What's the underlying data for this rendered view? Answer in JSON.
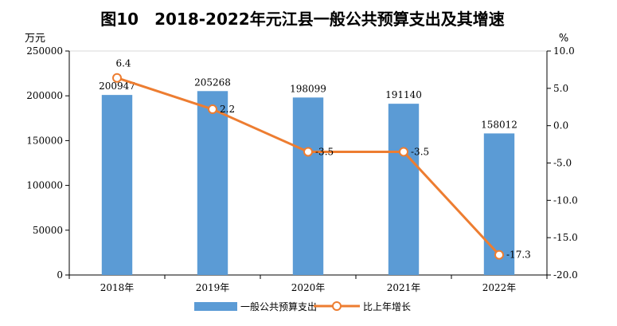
{
  "chart_data": {
    "type": "bar",
    "title": "图10　2018-2022年元江县一般公共预算支出及其增速",
    "categories": [
      "2018年",
      "2019年",
      "2020年",
      "2021年",
      "2022年"
    ],
    "y_left": {
      "label": "万元",
      "range": [
        0,
        250000
      ],
      "ticks": [
        0,
        50000,
        100000,
        150000,
        200000,
        250000
      ]
    },
    "y_right": {
      "label": "%",
      "range": [
        -20,
        10
      ],
      "ticks": [
        "10.0",
        "5.0",
        "0.0",
        "-5.0",
        "-10.0",
        "-15.0",
        "-20.0"
      ]
    },
    "series": [
      {
        "name": "一般公共预算支出",
        "kind": "bar",
        "axis": "left",
        "color": "#5b9bd5",
        "values": [
          200947,
          205268,
          198099,
          191140,
          158012
        ],
        "labels": [
          "200947",
          "205268",
          "198099",
          "191140",
          "158012"
        ]
      },
      {
        "name": "比上年增长",
        "kind": "line",
        "axis": "right",
        "color": "#ed7d31",
        "values": [
          6.4,
          2.2,
          -3.5,
          -3.5,
          -17.3
        ],
        "labels": [
          "6.4",
          "2.2",
          "-3.5",
          "-3.5",
          "-17.3"
        ]
      }
    ],
    "legend_position": "bottom",
    "grid": false
  }
}
